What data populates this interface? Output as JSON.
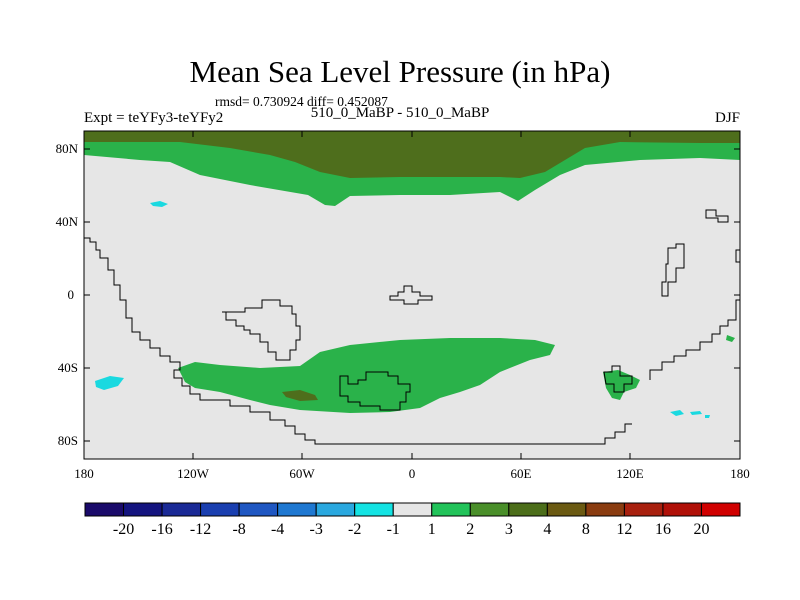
{
  "title": "Mean Sea Level Pressure (in hPa)",
  "stats": "rmsd= 0.730924 diff= 0.452087",
  "experiment": "Expt = teYFy3-teYFy2",
  "comparison": "510_0_MaBP - 510_0_MaBP",
  "season": "DJF",
  "y_axis_labels": [
    "80N",
    "40N",
    "0",
    "40S",
    "80S"
  ],
  "x_axis_labels": [
    "180",
    "120W",
    "60W",
    "0",
    "60E",
    "120E",
    "180"
  ],
  "colorbar": {
    "labels": [
      "-20",
      "-16",
      "-12",
      "-8",
      "-4",
      "-3",
      "-2",
      "-1",
      "1",
      "2",
      "3",
      "4",
      "8",
      "12",
      "16",
      "20"
    ],
    "colors": [
      "#1a0a6a",
      "#14147f",
      "#1a2a96",
      "#1a3fb0",
      "#1f57c2",
      "#1f78d1",
      "#2aa8df",
      "#14e3e3",
      "#e6e6e6",
      "#22c35a",
      "#4a8f2a",
      "#4c6e1a",
      "#6b5a12",
      "#8a3c10",
      "#a8200e",
      "#b01008",
      "#d00000"
    ]
  },
  "colors": {
    "ocean_land_bg": "#e6e6e6",
    "level_1_2": "#2ab24a",
    "level_3_4": "#4e6e1c",
    "negative_small": "#1ad9e0"
  }
}
